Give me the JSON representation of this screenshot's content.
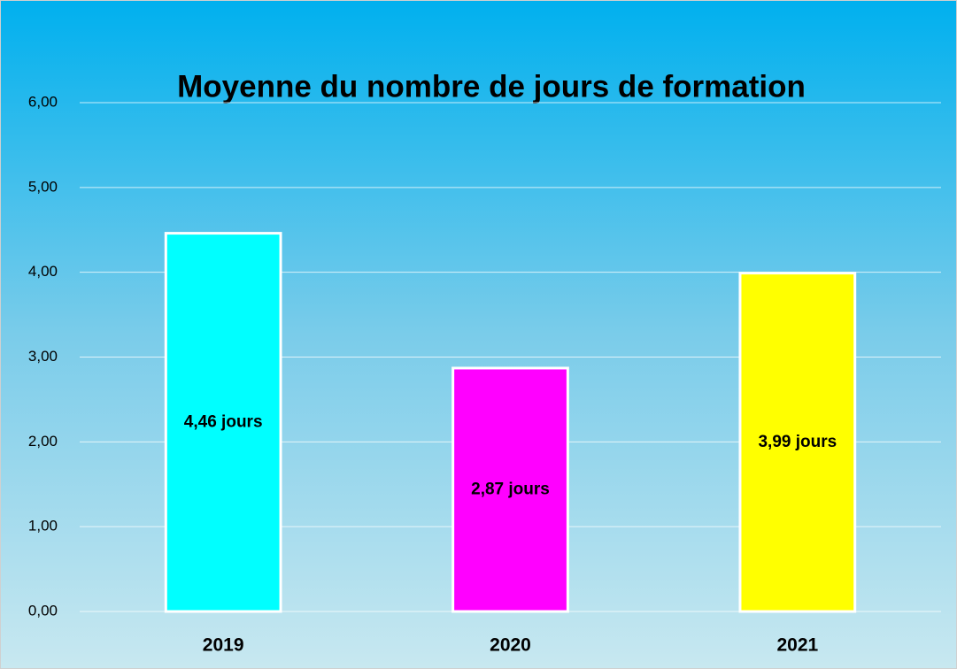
{
  "chart_data": {
    "type": "bar",
    "title": "Moyenne du nombre de jours de formation",
    "categories": [
      "2019",
      "2020",
      "2021"
    ],
    "values": [
      4.46,
      2.87,
      3.99
    ],
    "value_labels": [
      "4,46 jours",
      "2,87 jours",
      "3,99 jours"
    ],
    "colors": [
      "#00ffff",
      "#ff00ff",
      "#ffff00"
    ],
    "ylim": [
      0,
      6
    ],
    "yticks": [
      {
        "value": 0,
        "label": "0,00"
      },
      {
        "value": 1,
        "label": "1,00"
      },
      {
        "value": 2,
        "label": "2,00"
      },
      {
        "value": 3,
        "label": "3,00"
      },
      {
        "value": 4,
        "label": "4,00"
      },
      {
        "value": 5,
        "label": "5,00"
      },
      {
        "value": 6,
        "label": "6,00"
      }
    ],
    "grid": true
  }
}
